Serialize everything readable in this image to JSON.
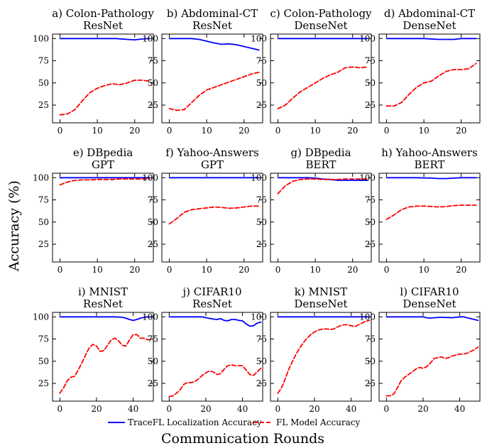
{
  "figure": {
    "ylabel": "Accuracy (%)",
    "xlabel": "Communication Rounds",
    "legend": {
      "placement": "bottom-center",
      "items": [
        {
          "label": "TraceFL Localization Accuracy",
          "color": "#0000ff",
          "style": "solid"
        },
        {
          "label": "FL Model Accuracy",
          "color": "#ff0000",
          "style": "dashed"
        }
      ]
    }
  },
  "chart_data": [
    {
      "type": "line",
      "title_line1": "a) Colon-Pathology",
      "title_line2": "ResNet",
      "xlim": [
        -2,
        25
      ],
      "ylim": [
        5,
        105
      ],
      "xticks": [
        0,
        10,
        20
      ],
      "yticks": [
        25,
        50,
        75,
        100
      ],
      "series": [
        {
          "name": "TraceFL Localization Accuracy",
          "x": [
            0,
            5,
            10,
            15,
            18,
            20,
            22,
            24
          ],
          "y": [
            100,
            100,
            100,
            100,
            99,
            98.5,
            99.5,
            100
          ]
        },
        {
          "name": "FL Model Accuracy",
          "x": [
            0,
            2,
            4,
            6,
            8,
            10,
            12,
            14,
            16,
            18,
            20,
            22,
            24
          ],
          "y": [
            14,
            15,
            20,
            30,
            39,
            44,
            47,
            49,
            48,
            50,
            53,
            53,
            52
          ]
        }
      ]
    },
    {
      "type": "line",
      "title_line1": "b) Abdominal-CT",
      "title_line2": "ResNet",
      "xlim": [
        -2,
        25
      ],
      "ylim": [
        5,
        105
      ],
      "xticks": [
        0,
        10,
        20
      ],
      "yticks": [
        25,
        50,
        75,
        100
      ],
      "series": [
        {
          "name": "TraceFL Localization Accuracy",
          "x": [
            0,
            4,
            6,
            8,
            10,
            12,
            14,
            16,
            18,
            20,
            22,
            24
          ],
          "y": [
            100,
            100,
            100,
            99,
            97,
            95,
            93.5,
            94,
            93,
            91,
            89,
            87
          ]
        },
        {
          "name": "FL Model Accuracy",
          "x": [
            0,
            2,
            4,
            6,
            8,
            10,
            12,
            14,
            16,
            18,
            20,
            22,
            24
          ],
          "y": [
            21,
            19,
            20,
            28,
            36,
            42,
            45,
            48,
            51,
            54,
            57,
            60,
            62
          ]
        }
      ]
    },
    {
      "type": "line",
      "title_line1": "c) Colon-Pathology",
      "title_line2": "DenseNet",
      "xlim": [
        -2,
        25
      ],
      "ylim": [
        5,
        105
      ],
      "xticks": [
        0,
        10,
        20
      ],
      "yticks": [
        25,
        50,
        75,
        100
      ],
      "series": [
        {
          "name": "TraceFL Localization Accuracy",
          "x": [
            0,
            5,
            10,
            15,
            20,
            24
          ],
          "y": [
            100,
            100,
            100,
            100,
            100,
            100
          ]
        },
        {
          "name": "FL Model Accuracy",
          "x": [
            0,
            2,
            4,
            6,
            8,
            10,
            12,
            14,
            16,
            18,
            20,
            22,
            24
          ],
          "y": [
            21,
            25,
            33,
            40,
            45,
            50,
            55,
            59,
            62,
            67,
            68,
            67,
            68
          ]
        }
      ]
    },
    {
      "type": "line",
      "title_line1": "d) Abdominal-CT",
      "title_line2": "DenseNet",
      "xlim": [
        -2,
        25
      ],
      "ylim": [
        5,
        105
      ],
      "xticks": [
        0,
        10,
        20
      ],
      "yticks": [
        25,
        50,
        75,
        100
      ],
      "series": [
        {
          "name": "TraceFL Localization Accuracy",
          "x": [
            0,
            5,
            10,
            14,
            16,
            18,
            20,
            24
          ],
          "y": [
            100,
            100,
            100,
            99,
            99,
            99,
            100,
            100
          ]
        },
        {
          "name": "FL Model Accuracy",
          "x": [
            0,
            2,
            4,
            6,
            8,
            10,
            12,
            14,
            16,
            18,
            20,
            22,
            24
          ],
          "y": [
            24,
            24,
            28,
            37,
            45,
            50,
            52,
            58,
            63,
            65,
            65,
            66,
            72
          ]
        }
      ]
    },
    {
      "type": "line",
      "title_line1": "e) DBpedia",
      "title_line2": "GPT",
      "xlim": [
        -2,
        25
      ],
      "ylim": [
        5,
        105
      ],
      "xticks": [
        0,
        10,
        20
      ],
      "yticks": [
        25,
        50,
        75,
        100
      ],
      "series": [
        {
          "name": "TraceFL Localization Accuracy",
          "x": [
            0,
            5,
            10,
            15,
            20,
            24
          ],
          "y": [
            100,
            100,
            100,
            100,
            100,
            100
          ]
        },
        {
          "name": "FL Model Accuracy",
          "x": [
            0,
            2,
            4,
            6,
            8,
            10,
            12,
            14,
            16,
            18,
            20,
            22,
            24
          ],
          "y": [
            92,
            95,
            97,
            97.5,
            97.5,
            98,
            98,
            98,
            98.5,
            98.5,
            98.5,
            98.5,
            98.5
          ]
        }
      ]
    },
    {
      "type": "line",
      "title_line1": "f) Yahoo-Answers",
      "title_line2": "GPT",
      "xlim": [
        -2,
        25
      ],
      "ylim": [
        5,
        105
      ],
      "xticks": [
        0,
        10,
        20
      ],
      "yticks": [
        25,
        50,
        75,
        100
      ],
      "series": [
        {
          "name": "TraceFL Localization Accuracy",
          "x": [
            0,
            5,
            10,
            15,
            20,
            24
          ],
          "y": [
            100,
            100,
            100,
            100,
            100,
            100
          ]
        },
        {
          "name": "FL Model Accuracy",
          "x": [
            0,
            2,
            4,
            6,
            8,
            10,
            12,
            14,
            16,
            18,
            20,
            22,
            24
          ],
          "y": [
            48,
            54,
            61,
            64,
            65,
            66,
            67,
            66.5,
            65.5,
            66,
            67,
            68,
            68
          ]
        }
      ]
    },
    {
      "type": "line",
      "title_line1": "g) DBpedia",
      "title_line2": "BERT",
      "xlim": [
        -2,
        25
      ],
      "ylim": [
        5,
        105
      ],
      "xticks": [
        0,
        10,
        20
      ],
      "yticks": [
        25,
        50,
        75,
        100
      ],
      "series": [
        {
          "name": "TraceFL Localization Accuracy",
          "x": [
            0,
            2,
            4,
            6,
            8,
            10,
            12,
            14,
            16,
            18,
            20,
            22,
            24
          ],
          "y": [
            100,
            100,
            100,
            100,
            100,
            99.5,
            98.5,
            98,
            97,
            97,
            97,
            97,
            97
          ]
        },
        {
          "name": "FL Model Accuracy",
          "x": [
            0,
            2,
            4,
            6,
            8,
            10,
            12,
            14,
            16,
            18,
            20,
            22,
            24
          ],
          "y": [
            82,
            91,
            96,
            98,
            98.5,
            98.5,
            98,
            98,
            98,
            98.5,
            98.5,
            98.5,
            98.5
          ]
        }
      ]
    },
    {
      "type": "line",
      "title_line1": "h) Yahoo-Answers",
      "title_line2": "BERT",
      "xlim": [
        -2,
        25
      ],
      "ylim": [
        5,
        105
      ],
      "xticks": [
        0,
        10,
        20
      ],
      "yticks": [
        25,
        50,
        75,
        100
      ],
      "series": [
        {
          "name": "TraceFL Localization Accuracy",
          "x": [
            0,
            4,
            8,
            12,
            14,
            16,
            18,
            20,
            24
          ],
          "y": [
            100,
            100,
            100,
            99.5,
            99,
            99,
            99.5,
            100,
            100
          ]
        },
        {
          "name": "FL Model Accuracy",
          "x": [
            0,
            2,
            4,
            6,
            8,
            10,
            12,
            14,
            16,
            18,
            20,
            22,
            24
          ],
          "y": [
            53,
            58,
            64,
            67,
            68,
            68,
            67.5,
            67,
            67.5,
            68.5,
            69,
            69,
            69
          ]
        }
      ]
    },
    {
      "type": "line",
      "title_line1": "i) MNIST",
      "title_line2": "ResNet",
      "xlim": [
        -4,
        51
      ],
      "ylim": [
        5,
        105
      ],
      "xticks": [
        0,
        20,
        40
      ],
      "yticks": [
        25,
        50,
        75,
        100
      ],
      "series": [
        {
          "name": "TraceFL Localization Accuracy",
          "x": [
            0,
            10,
            20,
            30,
            34,
            36,
            38,
            40,
            42,
            44,
            46,
            48,
            50
          ],
          "y": [
            100,
            100,
            100,
            100,
            99.5,
            98.5,
            97,
            96,
            97,
            98.5,
            99.5,
            100,
            100
          ]
        },
        {
          "name": "FL Model Accuracy",
          "x": [
            0,
            2,
            4,
            6,
            8,
            10,
            12,
            14,
            16,
            18,
            20,
            22,
            24,
            26,
            28,
            30,
            32,
            34,
            36,
            38,
            40,
            42,
            44,
            46,
            48,
            50
          ],
          "y": [
            14,
            20,
            28,
            32,
            33,
            40,
            48,
            57,
            65,
            69,
            67,
            61,
            62,
            68,
            74,
            76,
            73,
            68,
            67,
            74,
            80,
            80,
            76,
            76,
            74,
            75
          ]
        }
      ]
    },
    {
      "type": "line",
      "title_line1": "j) CIFAR10",
      "title_line2": "ResNet",
      "xlim": [
        -4,
        51
      ],
      "ylim": [
        5,
        105
      ],
      "xticks": [
        0,
        20,
        40
      ],
      "yticks": [
        25,
        50,
        75,
        100
      ],
      "series": [
        {
          "name": "TraceFL Localization Accuracy",
          "x": [
            0,
            10,
            18,
            20,
            24,
            26,
            28,
            30,
            32,
            34,
            36,
            38,
            40,
            42,
            44,
            46,
            48,
            50
          ],
          "y": [
            100,
            100,
            100,
            99,
            97.5,
            97,
            98,
            96,
            95.5,
            97,
            97,
            96,
            95.5,
            92,
            89.5,
            90,
            93,
            94
          ]
        },
        {
          "name": "FL Model Accuracy",
          "x": [
            0,
            2,
            4,
            6,
            8,
            10,
            12,
            14,
            16,
            18,
            20,
            22,
            24,
            26,
            28,
            30,
            32,
            34,
            36,
            38,
            40,
            42,
            44,
            46,
            48,
            50
          ],
          "y": [
            10,
            11,
            14,
            18,
            24,
            26,
            26,
            27,
            30,
            34,
            37,
            39,
            38,
            35,
            36,
            41,
            45,
            46,
            45,
            45,
            45,
            40,
            35,
            34,
            38,
            42
          ]
        }
      ]
    },
    {
      "type": "line",
      "title_line1": "k) MNIST",
      "title_line2": "DenseNet",
      "xlim": [
        -4,
        51
      ],
      "ylim": [
        5,
        105
      ],
      "xticks": [
        0,
        20,
        40
      ],
      "yticks": [
        25,
        50,
        75,
        100
      ],
      "series": [
        {
          "name": "TraceFL Localization Accuracy",
          "x": [
            0,
            10,
            20,
            30,
            40,
            50
          ],
          "y": [
            100,
            100,
            100,
            100,
            100,
            100
          ]
        },
        {
          "name": "FL Model Accuracy",
          "x": [
            0,
            2,
            4,
            6,
            8,
            10,
            12,
            14,
            16,
            18,
            20,
            22,
            24,
            26,
            28,
            30,
            32,
            34,
            36,
            38,
            40,
            42,
            44,
            46,
            48,
            50
          ],
          "y": [
            14,
            20,
            30,
            41,
            50,
            58,
            65,
            71,
            76,
            80,
            83,
            85,
            86,
            86.5,
            86,
            86,
            88,
            90,
            91,
            91,
            90,
            89,
            91,
            93,
            95,
            96
          ]
        }
      ]
    },
    {
      "type": "line",
      "title_line1": "l) CIFAR10",
      "title_line2": "DenseNet",
      "xlim": [
        -4,
        51
      ],
      "ylim": [
        5,
        105
      ],
      "xticks": [
        0,
        20,
        40
      ],
      "yticks": [
        25,
        50,
        75,
        100
      ],
      "series": [
        {
          "name": "TraceFL Localization Accuracy",
          "x": [
            0,
            10,
            20,
            22,
            24,
            26,
            30,
            36,
            40,
            42,
            44,
            46,
            48,
            50
          ],
          "y": [
            100,
            100,
            100,
            99,
            98.5,
            99,
            99.5,
            99,
            100,
            100,
            99,
            98,
            97,
            96
          ]
        },
        {
          "name": "FL Model Accuracy",
          "x": [
            0,
            2,
            4,
            6,
            8,
            10,
            12,
            14,
            16,
            18,
            20,
            22,
            24,
            26,
            28,
            30,
            32,
            34,
            36,
            38,
            40,
            42,
            44,
            46,
            48,
            50
          ],
          "y": [
            11,
            11,
            13,
            20,
            28,
            32,
            35,
            38,
            41,
            43,
            42,
            44,
            48,
            53,
            54,
            55,
            53,
            54,
            56,
            57,
            58,
            58,
            59,
            61,
            63,
            66
          ]
        }
      ]
    }
  ]
}
